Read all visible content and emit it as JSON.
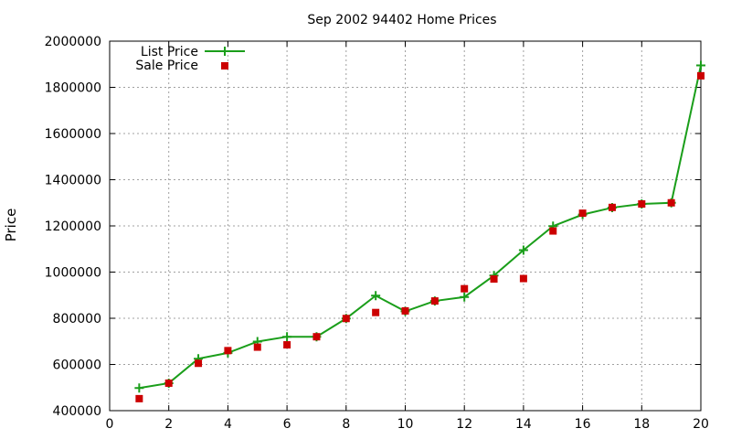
{
  "chart_data": {
    "type": "line",
    "title": "Sep 2002 94402 Home Prices",
    "xlabel": "",
    "ylabel": "Price",
    "xlim": [
      0,
      20
    ],
    "ylim": [
      400000,
      2000000
    ],
    "xticks": [
      0,
      2,
      4,
      6,
      8,
      10,
      12,
      14,
      16,
      18,
      20
    ],
    "yticks": [
      400000,
      600000,
      800000,
      1000000,
      1200000,
      1400000,
      1600000,
      1800000,
      2000000
    ],
    "grid": true,
    "legend": "top-left",
    "series": [
      {
        "name": "List Price",
        "style": "line-with-plus-markers",
        "color": "#1a9e1a",
        "x": [
          1,
          2,
          3,
          4,
          5,
          6,
          7,
          8,
          9,
          10,
          11,
          12,
          13,
          14,
          15,
          16,
          17,
          18,
          19,
          20
        ],
        "y": [
          498000,
          519000,
          625000,
          650000,
          699000,
          720000,
          720000,
          799000,
          898000,
          830000,
          875000,
          892000,
          985000,
          1095000,
          1199000,
          1249000,
          1279000,
          1295000,
          1300000,
          1895000
        ]
      },
      {
        "name": "Sale Price",
        "style": "square-markers",
        "color": "#cc0000",
        "x": [
          1,
          2,
          3,
          4,
          5,
          6,
          7,
          8,
          9,
          10,
          11,
          12,
          13,
          14,
          15,
          16,
          17,
          18,
          19,
          20
        ],
        "y": [
          452000,
          519000,
          605000,
          660000,
          675000,
          685000,
          720000,
          799000,
          825000,
          832000,
          875000,
          928000,
          970000,
          972000,
          1178000,
          1255000,
          1280000,
          1295000,
          1300000,
          1850000
        ]
      }
    ]
  }
}
